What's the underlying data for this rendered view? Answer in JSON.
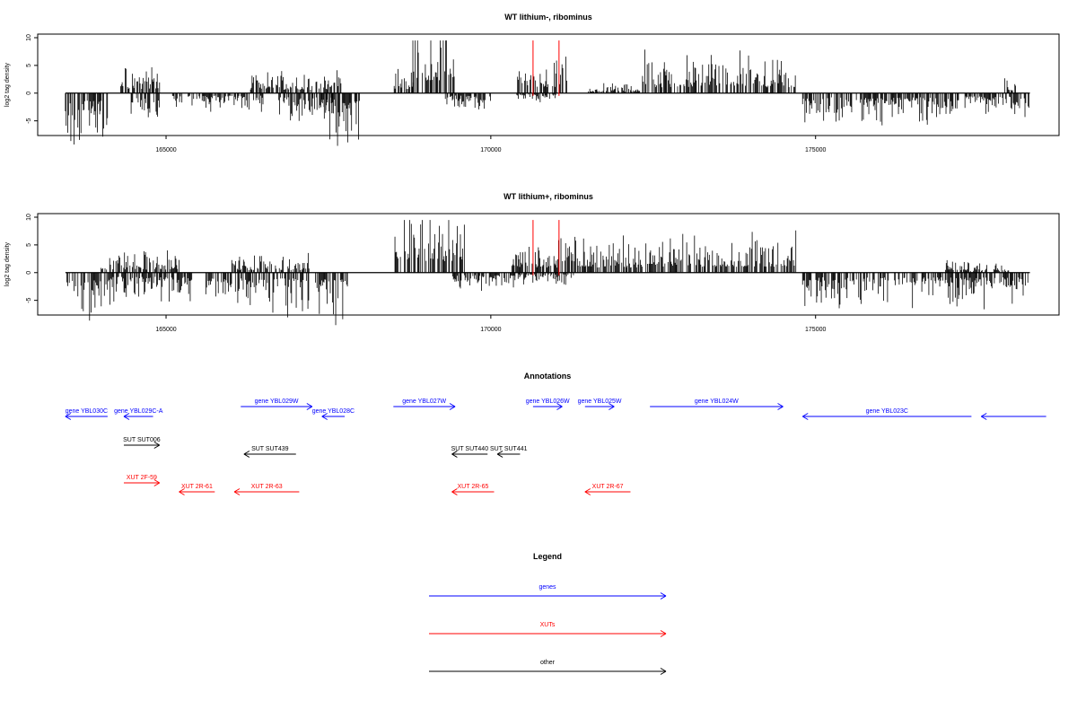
{
  "chart_data": [
    {
      "type": "bar",
      "title": "WT lithium-, ribominus",
      "ylabel": "log2 tag density",
      "xlim": [
        163300,
        178500
      ],
      "ylim": [
        -7,
        10
      ],
      "yticks": [
        -5,
        0,
        5,
        10
      ],
      "xticks": [
        165000,
        170000,
        175000
      ],
      "highlight_positions": [
        170650,
        171050
      ],
      "highlight_color": "#ff0000",
      "bar_color": "#000000",
      "segments": [
        {
          "range": [
            163450,
            164100
          ],
          "sign": -1,
          "amp": 4.5
        },
        {
          "range": [
            164300,
            164900
          ],
          "sign": 1,
          "amp": 2.5
        },
        {
          "range": [
            164450,
            164900
          ],
          "sign": -1,
          "amp": 2.5
        },
        {
          "range": [
            165100,
            166500
          ],
          "sign": -1,
          "amp": 1.5
        },
        {
          "range": [
            166300,
            167700
          ],
          "sign": 1,
          "amp": 2.0
        },
        {
          "range": [
            166700,
            167600
          ],
          "sign": -1,
          "amp": 2.5
        },
        {
          "range": [
            167400,
            168000
          ],
          "sign": -1,
          "amp": 4.5
        },
        {
          "range": [
            168500,
            168800
          ],
          "sign": 1,
          "amp": 2.5
        },
        {
          "range": [
            168800,
            169450
          ],
          "sign": 1,
          "amp": 7.5
        },
        {
          "range": [
            169300,
            170000
          ],
          "sign": -1,
          "amp": 1.5
        },
        {
          "range": [
            170400,
            171200
          ],
          "sign": 1,
          "amp": 3.5
        },
        {
          "range": [
            170400,
            171000
          ],
          "sign": -1,
          "amp": 0.8
        },
        {
          "range": [
            171500,
            172300
          ],
          "sign": 1,
          "amp": 0.8
        },
        {
          "range": [
            172300,
            174700
          ],
          "sign": 1,
          "amp": 3.5
        },
        {
          "range": [
            174800,
            177200
          ],
          "sign": -1,
          "amp": 2.5
        },
        {
          "range": [
            177300,
            178300
          ],
          "sign": -1,
          "amp": 2.0
        },
        {
          "range": [
            177900,
            178100
          ],
          "sign": 1,
          "amp": 1.5
        }
      ]
    },
    {
      "type": "bar",
      "title": "WT lithium+, ribominus",
      "ylabel": "log2 tag density",
      "xlim": [
        163300,
        178500
      ],
      "ylim": [
        -7,
        10
      ],
      "yticks": [
        -5,
        0,
        5,
        10
      ],
      "xticks": [
        165000,
        170000,
        175000
      ],
      "highlight_positions": [
        170650,
        171050
      ],
      "highlight_color": "#ff0000",
      "bar_color": "#000000",
      "segments": [
        {
          "range": [
            163450,
            164100
          ],
          "sign": -1,
          "amp": 4.5
        },
        {
          "range": [
            164000,
            165200
          ],
          "sign": 1,
          "amp": 1.8
        },
        {
          "range": [
            164100,
            165400
          ],
          "sign": -1,
          "amp": 2.5
        },
        {
          "range": [
            165600,
            167200
          ],
          "sign": -1,
          "amp": 3.5
        },
        {
          "range": [
            166000,
            167200
          ],
          "sign": 1,
          "amp": 1.5
        },
        {
          "range": [
            167300,
            167800
          ],
          "sign": -1,
          "amp": 4.0
        },
        {
          "range": [
            168500,
            169600
          ],
          "sign": 1,
          "amp": 6.5
        },
        {
          "range": [
            169400,
            170400
          ],
          "sign": -1,
          "amp": 1.5
        },
        {
          "range": [
            170300,
            172500
          ],
          "sign": 1,
          "amp": 3.0
        },
        {
          "range": [
            170300,
            171300
          ],
          "sign": -1,
          "amp": 1.0
        },
        {
          "range": [
            172500,
            174700
          ],
          "sign": 1,
          "amp": 3.5
        },
        {
          "range": [
            174800,
            178300
          ],
          "sign": -1,
          "amp": 2.8
        },
        {
          "range": [
            177000,
            178000
          ],
          "sign": 1,
          "amp": 1.0
        }
      ]
    }
  ],
  "annotations": {
    "title": "Annotations",
    "xlim": [
      163300,
      178500
    ],
    "items": [
      {
        "label": "gene YBL030C",
        "start": 164100,
        "end": 163450,
        "row": 1,
        "color": "#0000ff"
      },
      {
        "label": "gene YBL029C-A",
        "start": 164800,
        "end": 164350,
        "row": 1,
        "color": "#0000ff"
      },
      {
        "label": "gene YBL029W",
        "start": 166150,
        "end": 167250,
        "row": 0,
        "color": "#0000ff"
      },
      {
        "label": "gene YBL028C",
        "start": 167750,
        "end": 167400,
        "row": 1,
        "color": "#0000ff"
      },
      {
        "label": "gene YBL027W",
        "start": 168500,
        "end": 169450,
        "row": 0,
        "color": "#0000ff"
      },
      {
        "label": "gene YBL026W",
        "start": 170650,
        "end": 171100,
        "row": 0,
        "color": "#0000ff"
      },
      {
        "label": "gene YBL025W",
        "start": 171450,
        "end": 171900,
        "row": 0,
        "color": "#0000ff"
      },
      {
        "label": "gene YBL024W",
        "start": 172450,
        "end": 174500,
        "row": 0,
        "color": "#0000ff"
      },
      {
        "label": "gene YBL023C",
        "start": 177400,
        "end": 174800,
        "row": 1,
        "color": "#0000ff"
      },
      {
        "label": "",
        "start": 178550,
        "end": 177550,
        "row": 1,
        "color": "#0000ff"
      },
      {
        "label": "SUT SUT006",
        "start": 164350,
        "end": 164900,
        "row": 2,
        "color": "#000000"
      },
      {
        "label": "SUT SUT439",
        "start": 167000,
        "end": 166200,
        "row": 3,
        "color": "#000000"
      },
      {
        "label": "SUT SUT440",
        "start": 169950,
        "end": 169400,
        "row": 3,
        "color": "#000000"
      },
      {
        "label": "SUT SUT441",
        "start": 170450,
        "end": 170100,
        "row": 3,
        "color": "#000000"
      },
      {
        "label": "XUT 2F-59",
        "start": 164350,
        "end": 164900,
        "row": 4,
        "color": "#ff0000"
      },
      {
        "label": "XUT 2R-61",
        "start": 165750,
        "end": 165200,
        "row": 5,
        "color": "#ff0000"
      },
      {
        "label": "XUT 2R-63",
        "start": 167050,
        "end": 166050,
        "row": 5,
        "color": "#ff0000"
      },
      {
        "label": "XUT 2R-65",
        "start": 170050,
        "end": 169400,
        "row": 5,
        "color": "#ff0000"
      },
      {
        "label": "XUT 2R-67",
        "start": 172150,
        "end": 171450,
        "row": 5,
        "color": "#ff0000"
      }
    ]
  },
  "legend": {
    "title": "Legend",
    "items": [
      {
        "label": "genes",
        "color": "#0000ff"
      },
      {
        "label": "XUTs",
        "color": "#ff0000"
      },
      {
        "label": "other",
        "color": "#000000"
      }
    ]
  }
}
